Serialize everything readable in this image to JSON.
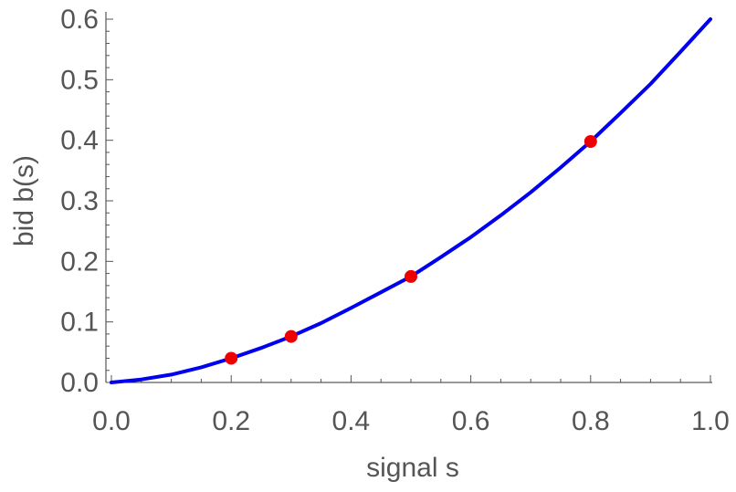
{
  "chart_data": {
    "type": "line",
    "xlabel": "signal  s",
    "ylabel": "bid  b(s)",
    "xlim": [
      0,
      1.0
    ],
    "ylim": [
      0,
      0.6
    ],
    "x_ticks": [
      "0.0",
      "0.2",
      "0.4",
      "0.6",
      "0.8",
      "1.0"
    ],
    "y_ticks": [
      "0.0",
      "0.1",
      "0.2",
      "0.3",
      "0.4",
      "0.5",
      "0.6"
    ],
    "grid": false,
    "series": [
      {
        "type": "line",
        "color": "#0000ee",
        "x": [
          0,
          0.05,
          0.1,
          0.15,
          0.2,
          0.25,
          0.3,
          0.35,
          0.4,
          0.45,
          0.5,
          0.55,
          0.6,
          0.65,
          0.7,
          0.75,
          0.8,
          0.85,
          0.9,
          0.95,
          1.0
        ],
        "y": [
          0,
          0.005,
          0.013,
          0.025,
          0.04,
          0.057,
          0.076,
          0.098,
          0.123,
          0.149,
          0.175,
          0.207,
          0.24,
          0.276,
          0.314,
          0.355,
          0.398,
          0.445,
          0.493,
          0.546,
          0.6
        ]
      },
      {
        "type": "scatter",
        "color": "#ee0000",
        "x": [
          0.2,
          0.3,
          0.5,
          0.8
        ],
        "y": [
          0.04,
          0.076,
          0.175,
          0.398
        ]
      }
    ]
  }
}
